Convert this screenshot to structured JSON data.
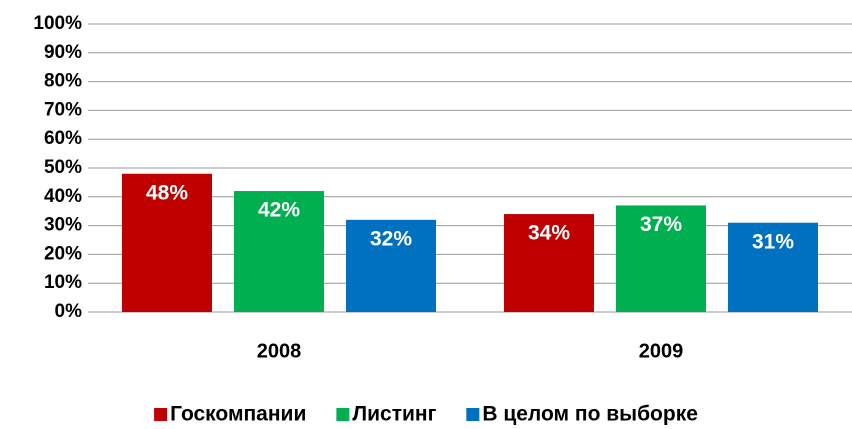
{
  "chart_data": {
    "type": "bar",
    "categories": [
      "2008",
      "2009"
    ],
    "series": [
      {
        "name": "Госкомпании",
        "color": "#c00000",
        "values": [
          48,
          34
        ],
        "value_labels": [
          "48%",
          "34%"
        ]
      },
      {
        "name": "Листинг",
        "color": "#00b050",
        "values": [
          42,
          37
        ],
        "value_labels": [
          "42%",
          "37%"
        ]
      },
      {
        "name": "В целом по выборке",
        "color": "#0070c0",
        "values": [
          32,
          31
        ],
        "value_labels": [
          "32%",
          "31%"
        ]
      }
    ],
    "ylim": [
      0,
      100
    ],
    "yticks": [
      {
        "value": 0,
        "label": "0%"
      },
      {
        "value": 10,
        "label": "10%"
      },
      {
        "value": 20,
        "label": "20%"
      },
      {
        "value": 30,
        "label": "30%"
      },
      {
        "value": 40,
        "label": "40%"
      },
      {
        "value": 50,
        "label": "50%"
      },
      {
        "value": 60,
        "label": "60%"
      },
      {
        "value": 70,
        "label": "70%"
      },
      {
        "value": 80,
        "label": "80%"
      },
      {
        "value": 90,
        "label": "90%"
      },
      {
        "value": 100,
        "label": "100%"
      }
    ],
    "grid": true,
    "legend": "bottom"
  }
}
